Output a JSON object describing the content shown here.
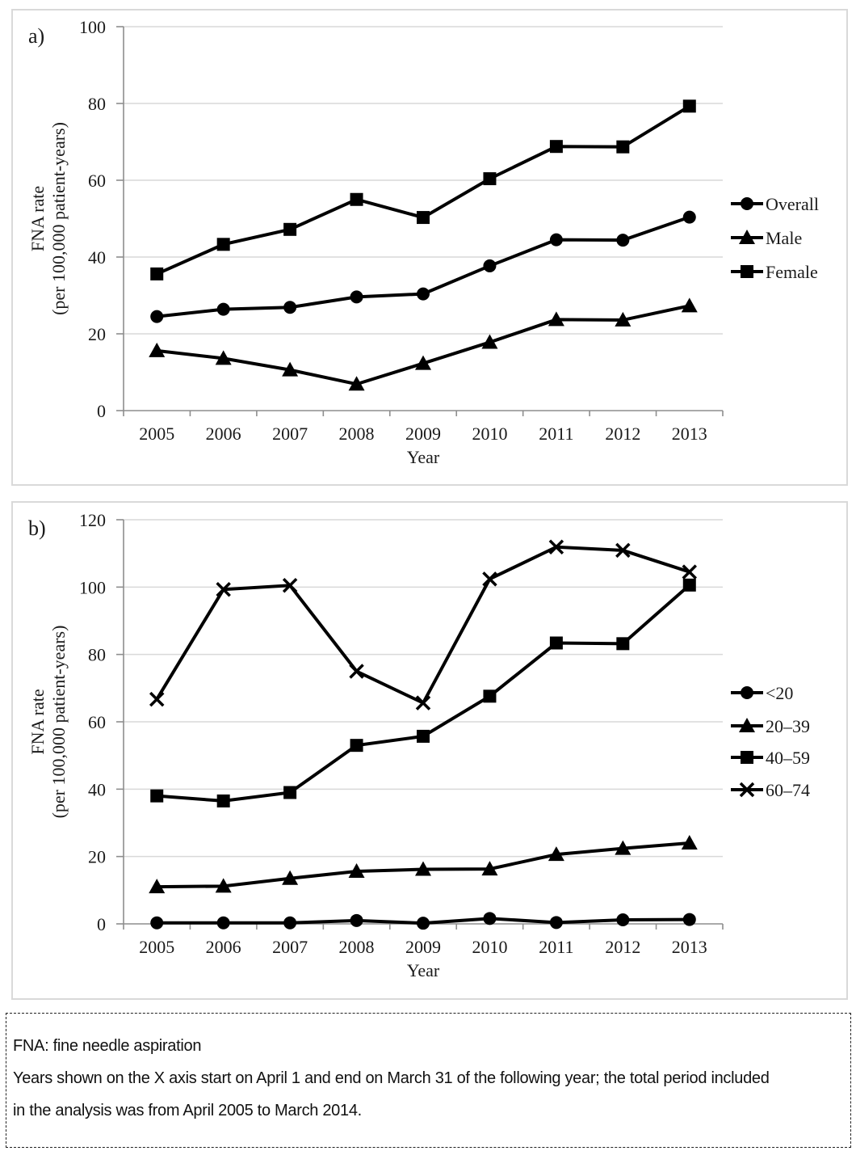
{
  "panels": [
    {
      "label": "a)"
    },
    {
      "label": "b)"
    }
  ],
  "footnote": {
    "lines": [
      "FNA: fine needle aspiration",
      "Years shown on the X axis start on April 1 and end on March 31 of the following year; the total period included",
      "in the analysis was from April 2005 to March 2014."
    ]
  },
  "colors": {
    "series": "#000000",
    "gridline": "#d9d9d9",
    "axis": "#8e8e8e",
    "panel_border": "#d9d9d9"
  },
  "chart_data": [
    {
      "type": "line",
      "panel": "a",
      "title": "",
      "xlabel": "Year",
      "ylabel_lines": [
        "FNA rate",
        "(per 100,000 patient-years)"
      ],
      "categories": [
        "2005",
        "2006",
        "2007",
        "2008",
        "2009",
        "2010",
        "2011",
        "2012",
        "2013"
      ],
      "ylim": [
        0,
        100
      ],
      "yticks": [
        0,
        20,
        40,
        60,
        80,
        100
      ],
      "grid": true,
      "legend_position": "right",
      "series": [
        {
          "id": "overall",
          "name": "Overall",
          "marker": "circle",
          "values": [
            24.5,
            26.4,
            26.9,
            29.6,
            30.4,
            37.7,
            44.5,
            44.4,
            50.4
          ]
        },
        {
          "id": "male",
          "name": "Male",
          "marker": "triangle",
          "values": [
            15.6,
            13.6,
            10.6,
            6.9,
            12.3,
            17.8,
            23.7,
            23.6,
            27.3
          ]
        },
        {
          "id": "female",
          "name": "Female",
          "marker": "square",
          "values": [
            35.6,
            43.3,
            47.2,
            55.0,
            50.3,
            60.4,
            68.8,
            68.7,
            79.3
          ]
        }
      ]
    },
    {
      "type": "line",
      "panel": "b",
      "title": "",
      "xlabel": "Year",
      "ylabel_lines": [
        "FNA rate",
        "(per 100,000 patient-years)"
      ],
      "categories": [
        "2005",
        "2006",
        "2007",
        "2008",
        "2009",
        "2010",
        "2011",
        "2012",
        "2013"
      ],
      "ylim": [
        0,
        120
      ],
      "yticks": [
        0,
        20,
        40,
        60,
        80,
        100,
        120
      ],
      "grid": true,
      "legend_position": "right",
      "series": [
        {
          "id": "age-lt-20",
          "name": "<20",
          "marker": "circle",
          "values": [
            0.3,
            0.3,
            0.3,
            1.0,
            0.2,
            1.6,
            0.4,
            1.2,
            1.3
          ]
        },
        {
          "id": "age-20-39",
          "name": "20–39",
          "marker": "triangle",
          "values": [
            11.0,
            11.2,
            13.5,
            15.6,
            16.2,
            16.3,
            20.6,
            22.4,
            24.0
          ]
        },
        {
          "id": "age-40-59",
          "name": "40–59",
          "marker": "square",
          "values": [
            38.0,
            36.5,
            39.0,
            53.0,
            55.7,
            67.6,
            83.4,
            83.2,
            100.6
          ]
        },
        {
          "id": "age-60-74",
          "name": "60–74",
          "marker": "x",
          "values": [
            66.7,
            99.3,
            100.5,
            75.0,
            65.6,
            102.4,
            111.9,
            110.9,
            104.5
          ]
        }
      ]
    }
  ]
}
